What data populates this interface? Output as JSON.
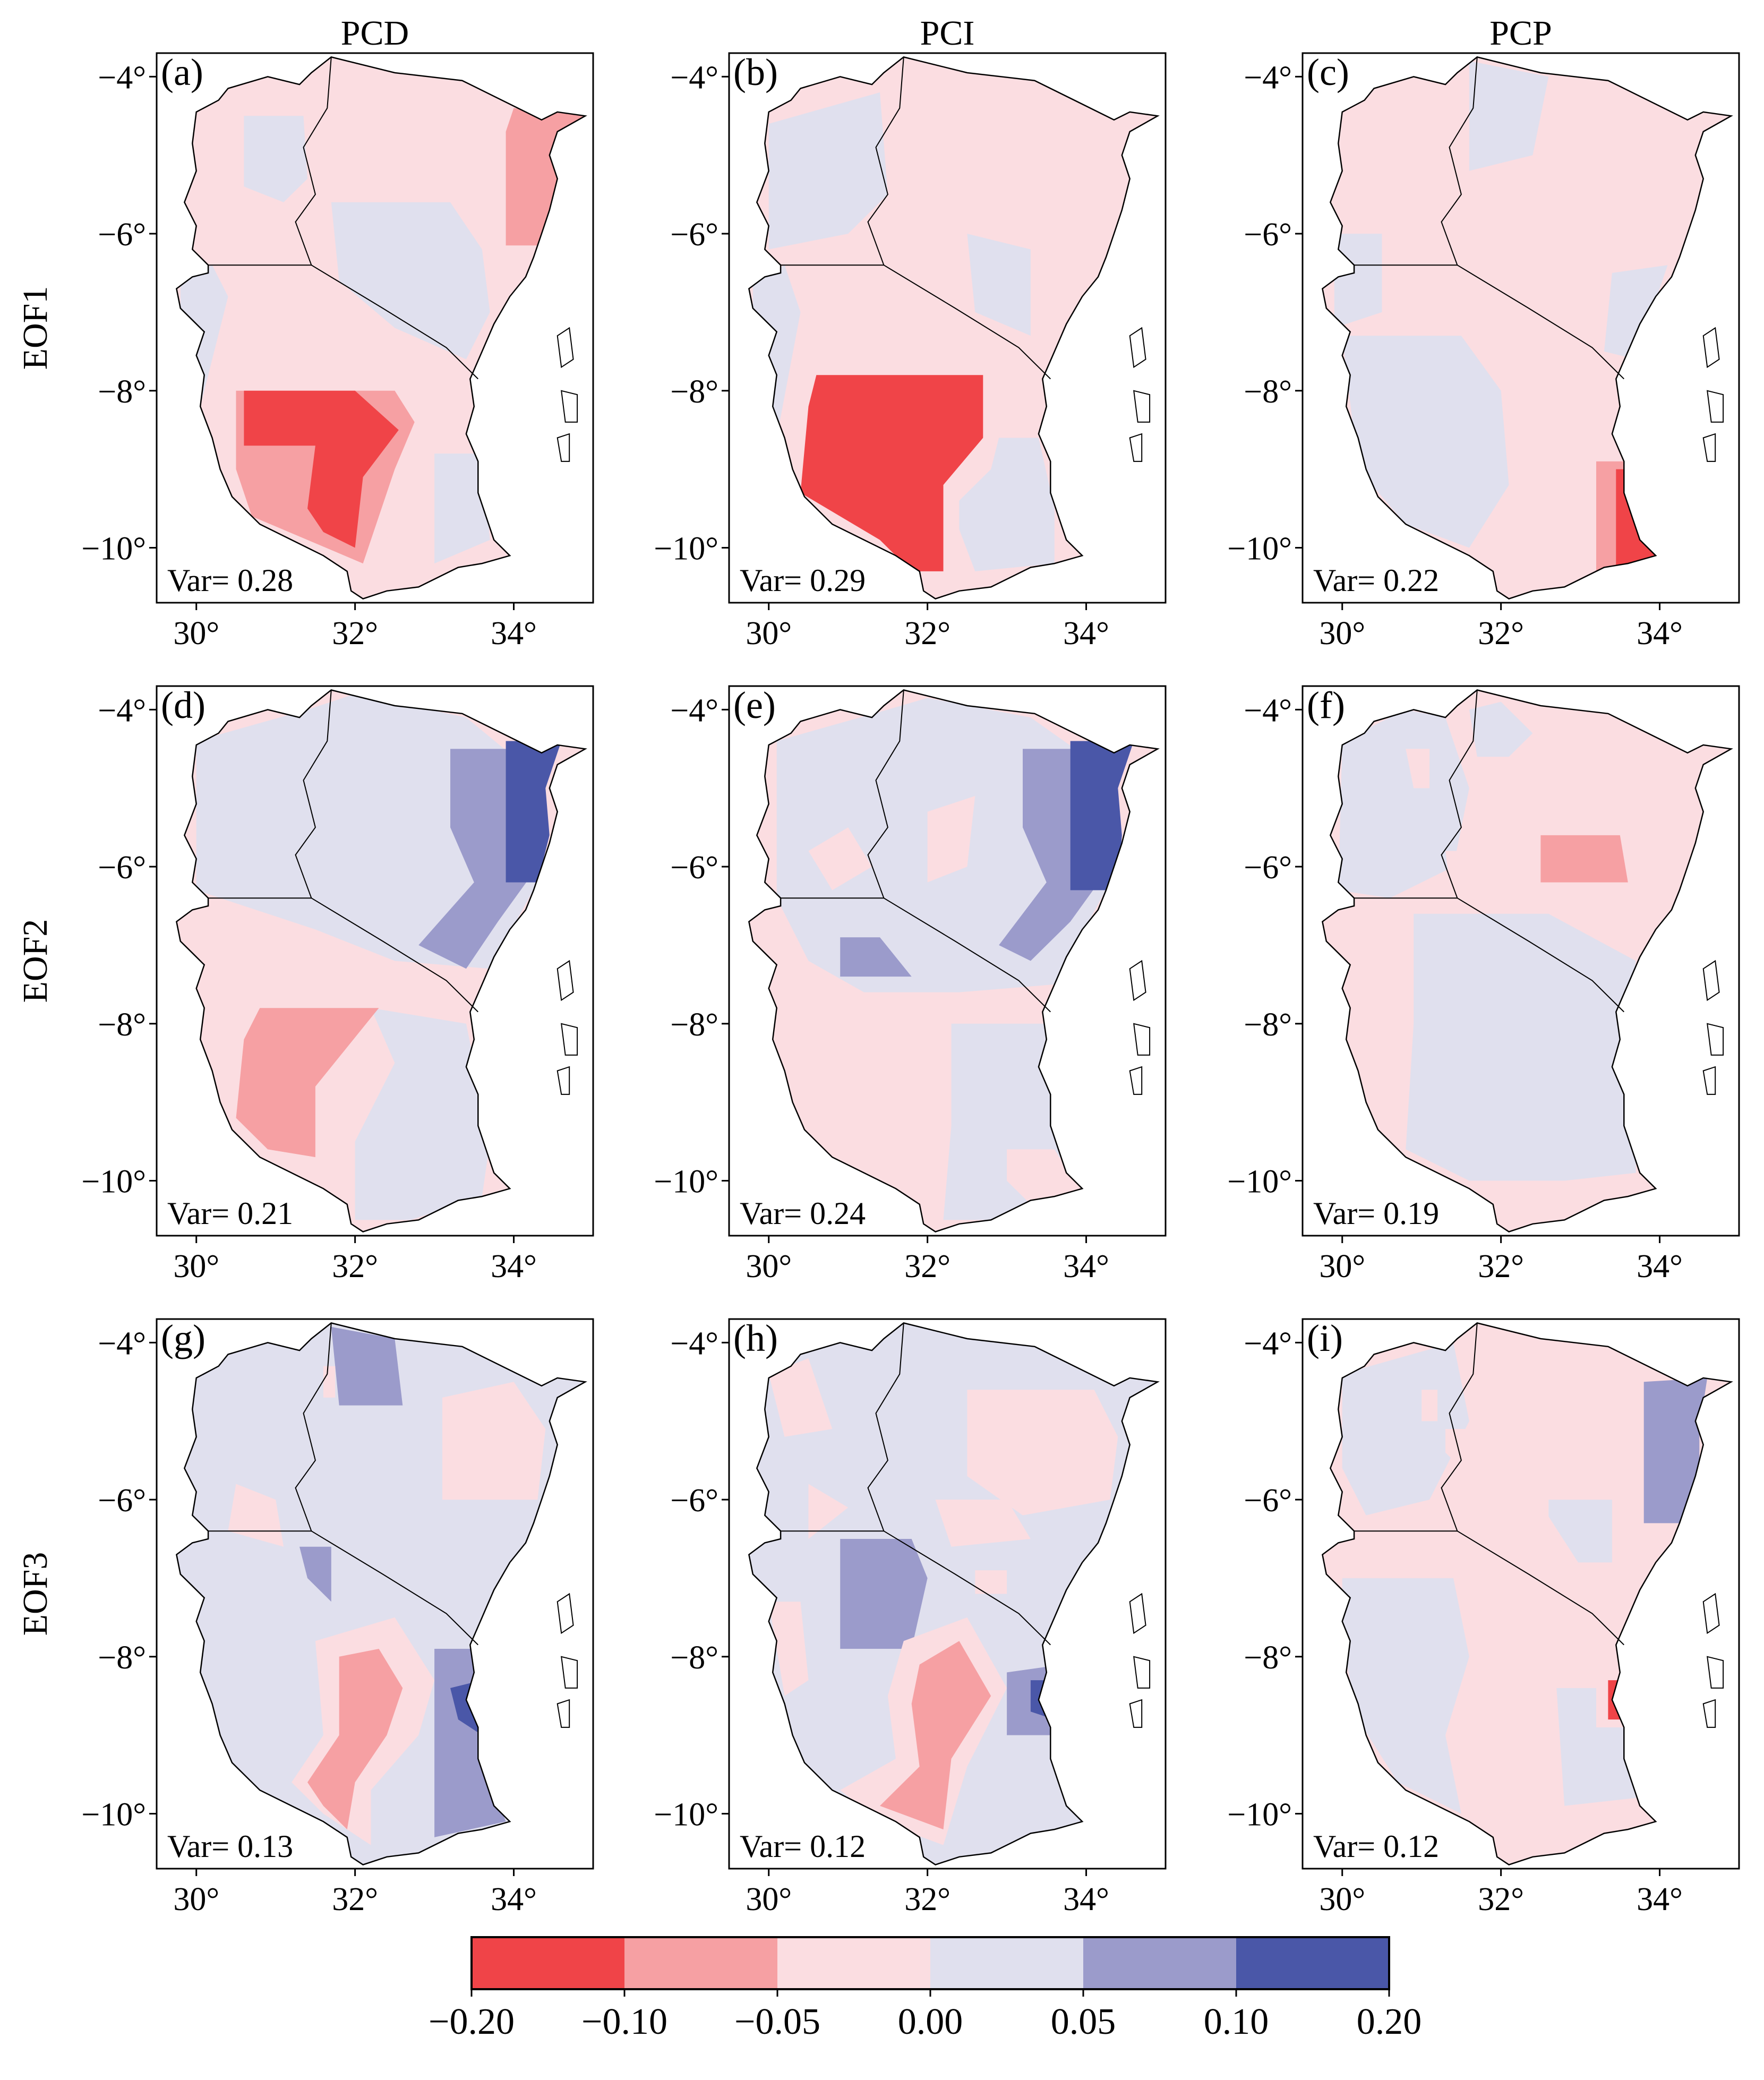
{
  "figure": {
    "column_titles": [
      "PCD",
      "PCI",
      "PCP"
    ],
    "row_titles": [
      "EOF1",
      "EOF2",
      "EOF3"
    ]
  },
  "axes": {
    "lon_ticks": [
      30,
      32,
      34
    ],
    "lat_ticks": [
      -4,
      -6,
      -8,
      -10
    ],
    "lon_range": [
      29.5,
      35.0
    ],
    "lat_range": [
      -10.7,
      -3.7
    ],
    "degree_symbol": "°",
    "minus_sign": "−"
  },
  "chart_data": [
    {
      "type": "heatmap",
      "panel": "(a)",
      "column": "PCD",
      "row": "EOF1",
      "var_label": "Var= 0.28"
    },
    {
      "type": "heatmap",
      "panel": "(b)",
      "column": "PCI",
      "row": "EOF1",
      "var_label": "Var= 0.29"
    },
    {
      "type": "heatmap",
      "panel": "(c)",
      "column": "PCP",
      "row": "EOF1",
      "var_label": "Var= 0.22"
    },
    {
      "type": "heatmap",
      "panel": "(d)",
      "column": "PCD",
      "row": "EOF2",
      "var_label": "Var= 0.21"
    },
    {
      "type": "heatmap",
      "panel": "(e)",
      "column": "PCI",
      "row": "EOF2",
      "var_label": "Var= 0.24"
    },
    {
      "type": "heatmap",
      "panel": "(f)",
      "column": "PCP",
      "row": "EOF2",
      "var_label": "Var= 0.19"
    },
    {
      "type": "heatmap",
      "panel": "(g)",
      "column": "PCD",
      "row": "EOF3",
      "var_label": "Var= 0.13"
    },
    {
      "type": "heatmap",
      "panel": "(h)",
      "column": "PCI",
      "row": "EOF3",
      "var_label": "Var= 0.12"
    },
    {
      "type": "heatmap",
      "panel": "(i)",
      "column": "PCP",
      "row": "EOF3",
      "var_label": "Var= 0.12"
    }
  ],
  "colorbar": {
    "bounds": [
      -0.2,
      -0.1,
      -0.05,
      0.0,
      0.05,
      0.1,
      0.2
    ],
    "tick_labels": [
      "−0.20",
      "−0.10",
      "−0.05",
      "0.00",
      "0.05",
      "0.10",
      "0.20"
    ],
    "colors": [
      "#f04448",
      "#f6a0a3",
      "#fbdde1",
      "#e0e0ee",
      "#9b9bcb",
      "#4a57a8"
    ]
  }
}
